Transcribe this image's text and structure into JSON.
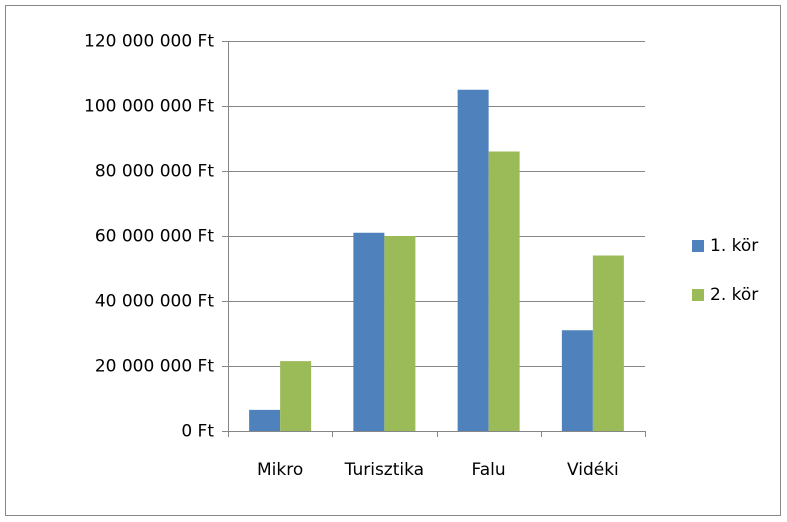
{
  "chart_data": {
    "type": "bar",
    "categories": [
      "Mikro",
      "Turisztika",
      "Falu",
      "Vidéki"
    ],
    "series": [
      {
        "name": "1. kör",
        "color": "#4f81bd",
        "values": [
          6500000,
          61000000,
          105000000,
          31000000
        ]
      },
      {
        "name": "2. kör",
        "color": "#9bbb59",
        "values": [
          21500000,
          60000000,
          86000000,
          54000000
        ]
      }
    ],
    "ylim": [
      0,
      120000000
    ],
    "yticks": [
      {
        "value": 0,
        "label": "0 Ft"
      },
      {
        "value": 20000000,
        "label": "20 000 000 Ft"
      },
      {
        "value": 40000000,
        "label": "40 000 000 Ft"
      },
      {
        "value": 60000000,
        "label": "60 000 000 Ft"
      },
      {
        "value": 80000000,
        "label": "80 000 000 Ft"
      },
      {
        "value": 100000000,
        "label": "100 000 000 Ft"
      },
      {
        "value": 120000000,
        "label": "120 000 000 Ft"
      }
    ],
    "grid": true,
    "legend": "right"
  }
}
